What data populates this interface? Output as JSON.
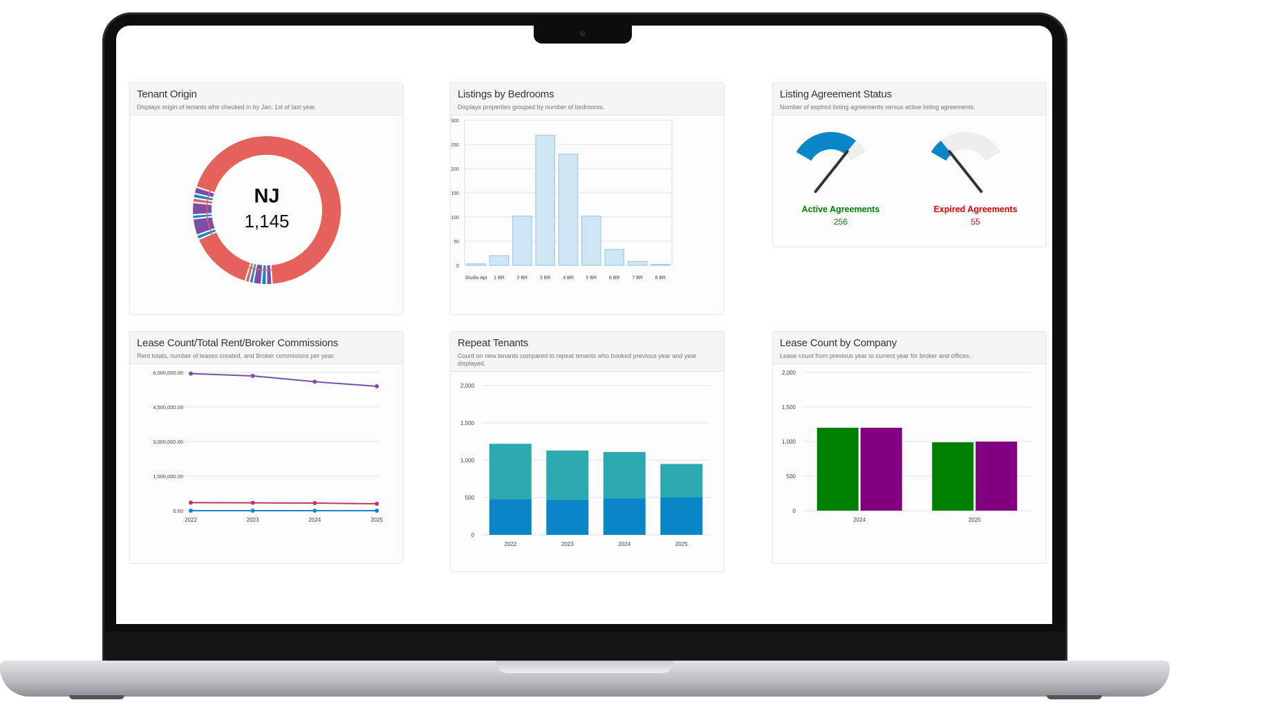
{
  "window": {
    "notch": "camera-notch"
  },
  "colors": {
    "red": "#e4625b",
    "blue": "#1786cc",
    "purple": "#7b4fa8",
    "green": "#008000",
    "violet": "#800080",
    "teal": "#2ba8b0",
    "barblue": "#cde6f5"
  },
  "cards": {
    "tenant_origin": {
      "title": "Tenant Origin",
      "subtitle": "Displays origin of tenants who checked in by Jan. 1st of last year.",
      "center_label": "NJ",
      "center_value": "1,145"
    },
    "listings": {
      "title": "Listings by Bedrooms",
      "subtitle": "Displays properties grouped by number of bedrooms."
    },
    "agreement": {
      "title": "Listing Agreement Status",
      "subtitle": "Number of expired listing agreements versus active listing agreements."
    },
    "lease_count": {
      "title": "Lease Count/Total Rent/Broker Commissions",
      "subtitle": "Rent totals, number of leases created, and Broker commisions per year."
    },
    "repeat": {
      "title": "Repeat Tenants",
      "subtitle": "Count on new tenants compared to repeat tenants who booked previous year and year displayed."
    },
    "company": {
      "title": "Lease Count by Company",
      "subtitle": "Lease count from previous year to current year for broker and offices."
    }
  },
  "chart_data": [
    {
      "id": "tenant_origin",
      "type": "pie",
      "slices": [
        {
          "name": "NJ",
          "value": 1145,
          "color": "#e4625b"
        },
        {
          "value": 20,
          "color": "#7b4fa8"
        },
        {
          "value": 18,
          "color": "#1786cc"
        },
        {
          "value": 30,
          "color": "#7b4fa8"
        },
        {
          "value": 14,
          "color": "#1786cc"
        },
        {
          "value": 15,
          "color": "#e4625b"
        },
        {
          "value": 230,
          "color": "#e4625b"
        },
        {
          "value": 16,
          "color": "#1786cc"
        },
        {
          "value": 60,
          "color": "#7b4fa8"
        },
        {
          "value": 14,
          "color": "#1786cc"
        },
        {
          "value": 45,
          "color": "#7b4fa8"
        },
        {
          "value": 16,
          "color": "#e4625b"
        },
        {
          "value": 16,
          "color": "#1786cc"
        },
        {
          "value": 24,
          "color": "#7b4fa8"
        }
      ]
    },
    {
      "id": "listings",
      "type": "bar",
      "categories": [
        "Studio Apt",
        "1 BR",
        "2 BR",
        "3 BR",
        "4 BR",
        "5 BR",
        "6 BR",
        "7 BR",
        "8 BR"
      ],
      "values": [
        3,
        20,
        102,
        269,
        230,
        102,
        33,
        8,
        2
      ],
      "ylim": [
        0,
        300
      ],
      "yticks": [
        "0",
        "50",
        "100",
        "150",
        "200",
        "250",
        "300"
      ]
    },
    {
      "id": "agreement",
      "type": "gauge",
      "gauges": [
        {
          "label": "Active Agreements",
          "value": "256",
          "fraction": 0.82,
          "color": "#008000"
        },
        {
          "label": "Expired Agreements",
          "value": "55",
          "fraction": 0.18,
          "color": "#e00000"
        }
      ]
    },
    {
      "id": "lease_count",
      "type": "line",
      "x": [
        "2022",
        "2023",
        "2024",
        "2025"
      ],
      "ylim": [
        0,
        6000000
      ],
      "yticks": [
        "0.00",
        "1,500,000.00",
        "3,000,000.00",
        "4,500,000.00",
        "6,000,000.00"
      ],
      "series": [
        {
          "values": [
            5950000,
            5850000,
            5600000,
            5400000
          ],
          "color": "#7b4fa8"
        },
        {
          "values": [
            350000,
            340000,
            330000,
            300000
          ],
          "color": "#c0395b"
        },
        {
          "values": [
            0,
            0,
            0,
            0
          ],
          "color": "#1786cc"
        }
      ]
    },
    {
      "id": "repeat",
      "type": "bar",
      "x": [
        "2022",
        "2023",
        "2024",
        "2025"
      ],
      "ylim": [
        0,
        2000
      ],
      "yticks": [
        "0",
        "500",
        "1,000",
        "1,500",
        "2,000"
      ],
      "series": [
        {
          "values": [
            480,
            470,
            490,
            500
          ],
          "color": "#0a86c8"
        },
        {
          "values": [
            740,
            660,
            620,
            450
          ],
          "color": "#2ba8b0"
        }
      ]
    },
    {
      "id": "company",
      "type": "bar",
      "x": [
        "2024",
        "2025"
      ],
      "ylim": [
        0,
        2000
      ],
      "yticks": [
        "0",
        "500",
        "1,000",
        "1,500",
        "2,000"
      ],
      "series": [
        {
          "values": [
            1200,
            990
          ],
          "color": "#008000"
        },
        {
          "values": [
            1200,
            1000
          ],
          "color": "#800080"
        }
      ]
    }
  ]
}
